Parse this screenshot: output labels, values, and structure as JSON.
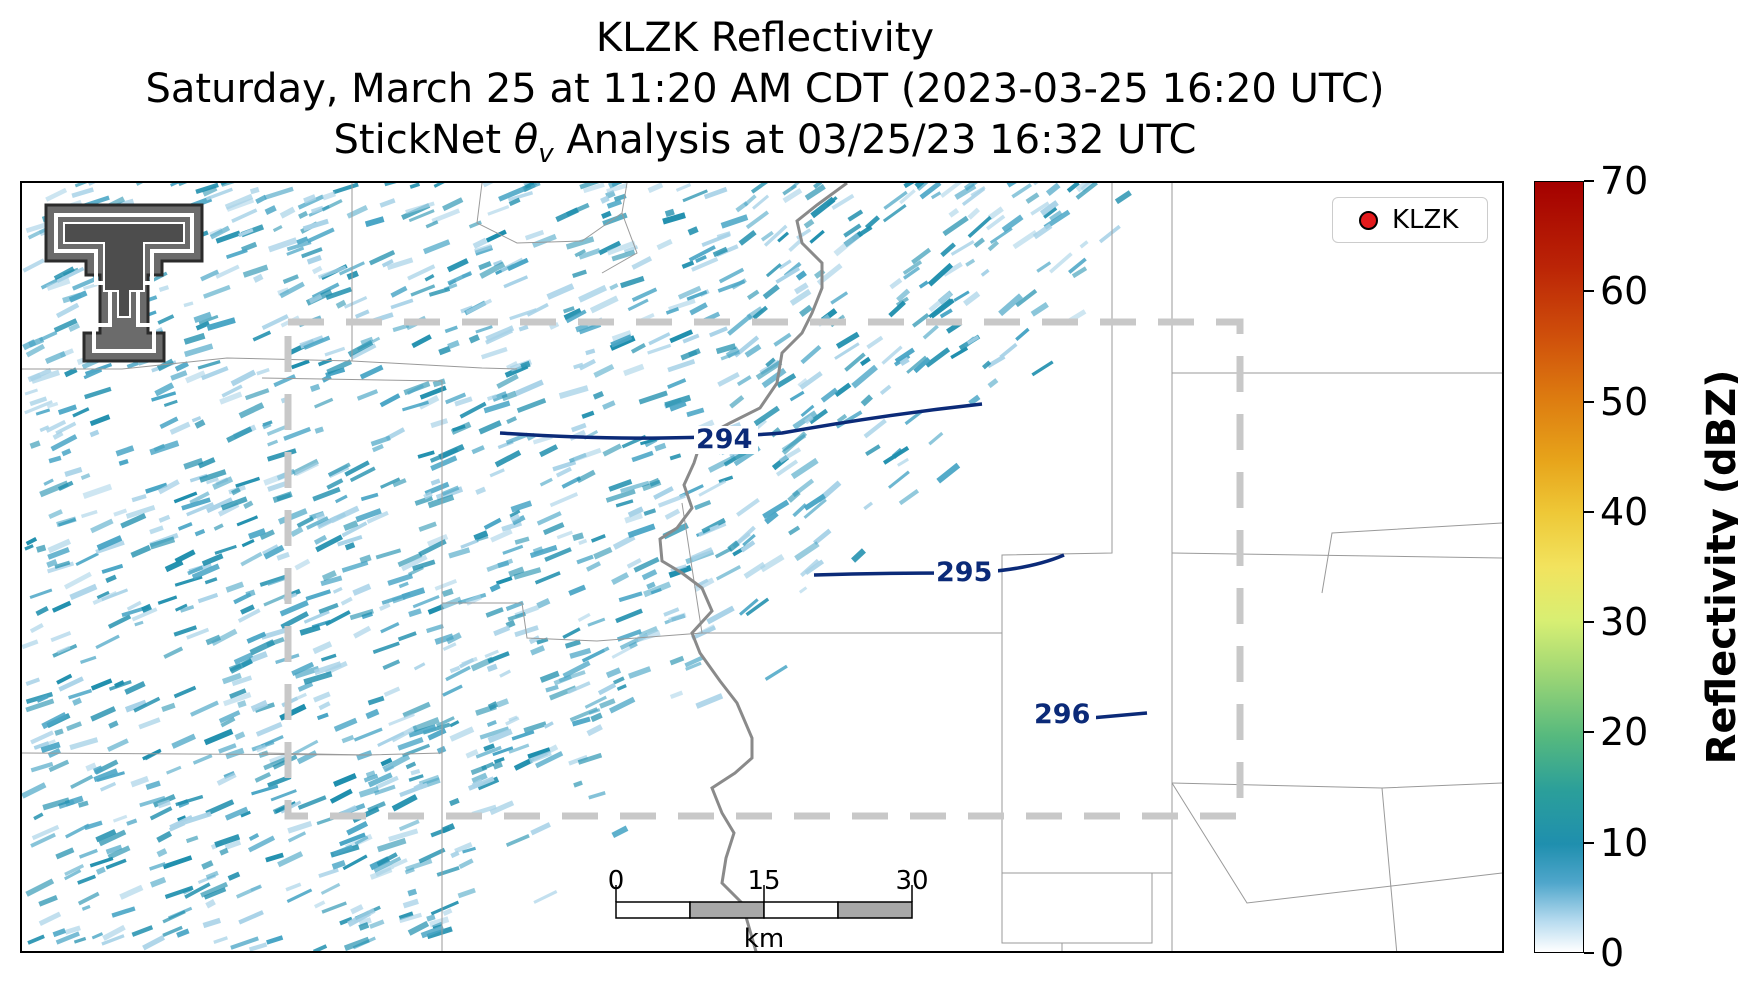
{
  "title": {
    "line1": "KLZK Reflectivity",
    "line2": "Saturday, March 25 at 11:20 AM CDT (2023-03-25 16:20 UTC)",
    "line3_prefix": "StickNet ",
    "line3_symbol": "θ",
    "line3_subscript": "v",
    "line3_suffix": " Analysis at 03/25/23 16:32 UTC"
  },
  "legend": {
    "label": "KLZK",
    "marker_color": "#e31a1c"
  },
  "colorbar": {
    "label": "Reflectivity (dBZ)",
    "min": 0,
    "max": 70,
    "ticks": [
      "0",
      "10",
      "20",
      "30",
      "40",
      "50",
      "60",
      "70"
    ]
  },
  "contours": {
    "color": "#0b2a78",
    "labels": [
      "294",
      "295",
      "296"
    ]
  },
  "scalebar": {
    "ticks": [
      "0",
      "15",
      "30"
    ],
    "unit": "km"
  },
  "logo": {
    "name": "Texas Tech Double T"
  },
  "colors": {
    "radar_dark": "#1f8fae",
    "radar_mid": "#4aa6c6",
    "radar_light": "#a9d3e8",
    "analysis_box": "#c8c8c8",
    "river": "#8a8a8a",
    "county_lines": "#9a9a9a"
  }
}
